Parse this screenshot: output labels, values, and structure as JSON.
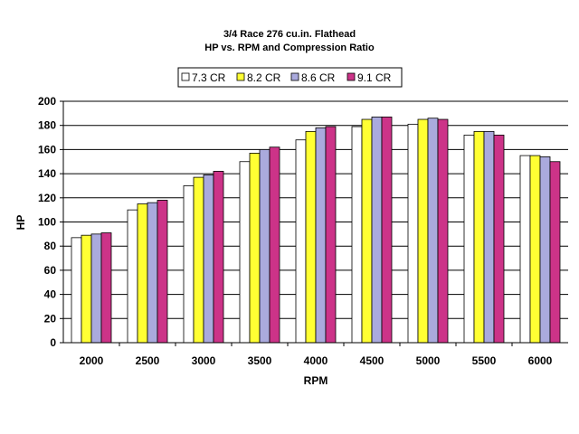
{
  "chart_data": {
    "type": "bar",
    "title": "3/4 Race 276 cu.in. Flathead",
    "subtitle": "HP vs. RPM and Compression Ratio",
    "xlabel": "RPM",
    "ylabel": "HP",
    "ylim": [
      0,
      200
    ],
    "yticks": [
      "0",
      "20",
      "40",
      "60",
      "80",
      "100",
      "120",
      "140",
      "160",
      "180",
      "200"
    ],
    "grid": true,
    "legend_position": "top",
    "categories": [
      "2000",
      "2500",
      "3000",
      "3500",
      "4000",
      "4500",
      "5000",
      "5500",
      "6000"
    ],
    "series": [
      {
        "name": "7.3 CR",
        "color": "#ffffff",
        "values": [
          87,
          110,
          130,
          150,
          168,
          179,
          181,
          172,
          155
        ]
      },
      {
        "name": "8.2 CR",
        "color": "#ffff33",
        "values": [
          89,
          115,
          137,
          157,
          175,
          185,
          185,
          175,
          155
        ]
      },
      {
        "name": "8.6 CR",
        "color": "#aaaadd",
        "values": [
          90,
          116,
          139,
          160,
          178,
          187,
          186,
          175,
          154
        ]
      },
      {
        "name": "9.1 CR",
        "color": "#cc3388",
        "values": [
          91,
          118,
          142,
          162,
          179,
          187,
          185,
          172,
          150
        ]
      }
    ]
  }
}
